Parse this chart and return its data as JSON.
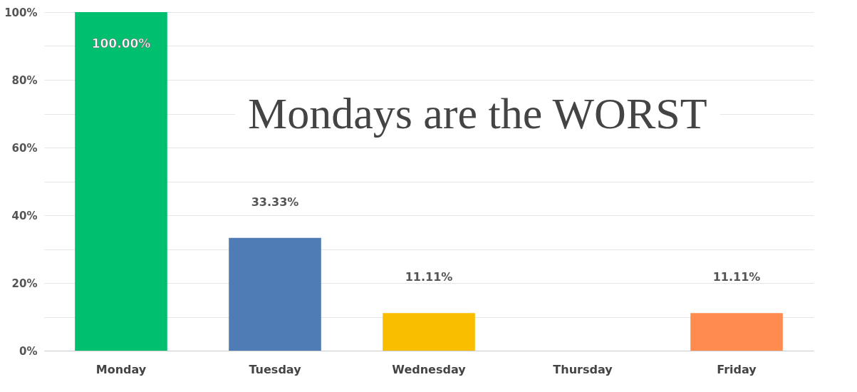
{
  "chart_data": {
    "type": "bar",
    "categories": [
      "Monday",
      "Tuesday",
      "Wednesday",
      "Thursday",
      "Friday"
    ],
    "values": [
      100,
      33.33,
      11.11,
      0,
      11.11
    ],
    "colors": [
      "#00bf6f",
      "#507cb6",
      "#f9be00",
      "#6bc8cd",
      "#ff8b4f"
    ],
    "value_labels": [
      "100.00%",
      "33.33%",
      "11.11%",
      null,
      "11.11%"
    ],
    "ylim": [
      0,
      100
    ],
    "yticks": [
      {
        "value": 0,
        "label": "0%"
      },
      {
        "value": 10,
        "label": null
      },
      {
        "value": 20,
        "label": "20%"
      },
      {
        "value": 30,
        "label": null
      },
      {
        "value": 40,
        "label": "40%"
      },
      {
        "value": 50,
        "label": null
      },
      {
        "value": 60,
        "label": "60%"
      },
      {
        "value": 70,
        "label": null
      },
      {
        "value": 80,
        "label": "80%"
      },
      {
        "value": 90,
        "label": null
      },
      {
        "value": 100,
        "label": "100%"
      }
    ],
    "grid": "y",
    "legend": false,
    "annotations": [
      "Mondays are the WORST"
    ]
  }
}
